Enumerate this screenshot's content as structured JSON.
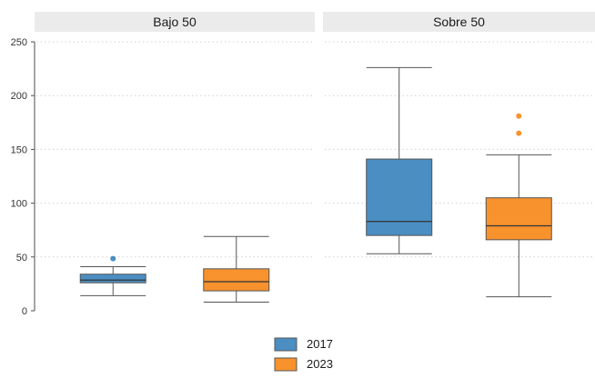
{
  "chart_data": {
    "type": "boxplot",
    "facets": [
      "Bajo 50",
      "Sobre 50"
    ],
    "series": [
      {
        "name": "2017",
        "color": "#4a8ec2"
      },
      {
        "name": "2023",
        "color": "#f7922d"
      }
    ],
    "ylim": [
      0,
      250
    ],
    "yticks": [
      0,
      50,
      100,
      150,
      200,
      250
    ],
    "grid": true,
    "legend_position": "bottom-center",
    "boxes": [
      {
        "facet": "Bajo 50",
        "series": "2017",
        "whisker_low": 14,
        "q1": 26,
        "median": 28.5,
        "q3": 34,
        "whisker_high": 41,
        "outliers": [
          48.5
        ]
      },
      {
        "facet": "Bajo 50",
        "series": "2023",
        "whisker_low": 8,
        "q1": 18.5,
        "median": 27,
        "q3": 39,
        "whisker_high": 69,
        "outliers": []
      },
      {
        "facet": "Sobre 50",
        "series": "2017",
        "whisker_low": 53,
        "q1": 70,
        "median": 83,
        "q3": 141,
        "whisker_high": 226,
        "outliers": []
      },
      {
        "facet": "Sobre 50",
        "series": "2023",
        "whisker_low": 13,
        "q1": 66,
        "median": 79,
        "q3": 105,
        "whisker_high": 145,
        "outliers": [
          165,
          181
        ]
      }
    ]
  }
}
